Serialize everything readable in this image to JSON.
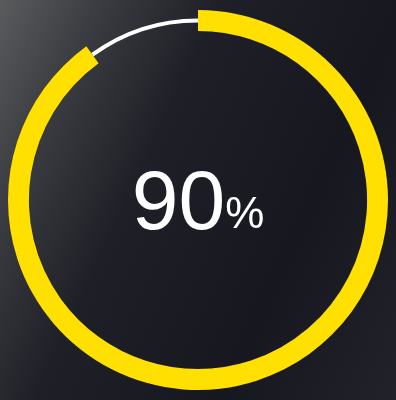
{
  "chart_data": {
    "type": "doughnut",
    "values": [
      90,
      10
    ],
    "colors": [
      "#ffe000",
      "#ffffff"
    ],
    "value_labels": [
      "90%",
      null
    ],
    "data_labels": true
  }
}
